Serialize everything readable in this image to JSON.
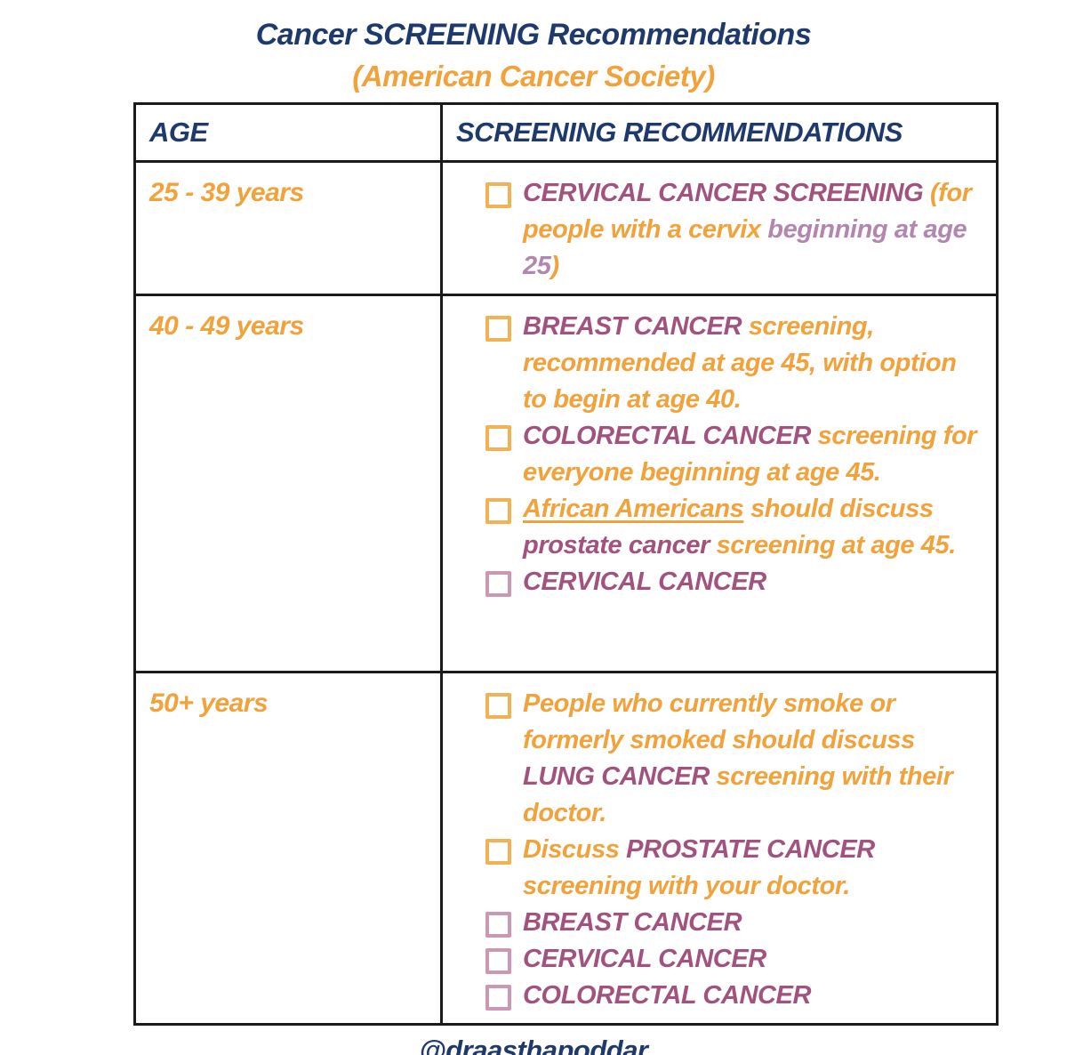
{
  "title": "Cancer SCREENING Recommendations",
  "subtitle": "(American Cancer Society)",
  "footer": "@draasthapoddar",
  "colors": {
    "navy": "#1e3a6d",
    "orange": "#f2a23b",
    "magenta": "#a1527e",
    "mauve": "#b286ae",
    "checkbox_orange": "#f2b254",
    "checkbox_pink": "#cc97b3"
  },
  "table": {
    "headers": [
      "AGE",
      "SCREENING RECOMMENDATIONS"
    ],
    "rows": [
      {
        "age": "25 - 39 years",
        "items": [
          {
            "checkbox": "orange",
            "segments": [
              {
                "text": "CERVICAL CANCER SCREENING ",
                "color": "magenta"
              },
              {
                "text": "(for people with a cervix ",
                "color": "orange"
              },
              {
                "text": "beginning at age 25",
                "color": "mauve"
              },
              {
                "text": ")",
                "color": "orange"
              }
            ]
          }
        ]
      },
      {
        "age": "40 - 49 years",
        "items": [
          {
            "checkbox": "orange",
            "segments": [
              {
                "text": "BREAST CANCER ",
                "color": "magenta"
              },
              {
                "text": "screening, recommended at age 45, with option to begin at age 40.",
                "color": "orange"
              }
            ]
          },
          {
            "checkbox": "orange",
            "segments": [
              {
                "text": "COLORECTAL CANCER ",
                "color": "magenta"
              },
              {
                "text": "screening for everyone beginning at age 45.",
                "color": "orange"
              }
            ]
          },
          {
            "checkbox": "orange",
            "segments": [
              {
                "text": "African Americans",
                "color": "orange",
                "underline": true
              },
              {
                "text": " should discuss ",
                "color": "orange"
              },
              {
                "text": "prostate cancer",
                "color": "magenta"
              },
              {
                "text": " screening at age 45.",
                "color": "orange"
              }
            ]
          },
          {
            "checkbox": "pink",
            "segments": [
              {
                "text": "CERVICAL CANCER",
                "color": "magenta"
              }
            ]
          }
        ]
      },
      {
        "age": "50+ years",
        "items": [
          {
            "checkbox": "orange",
            "segments": [
              {
                "text": "People who currently smoke or formerly smoked should discuss ",
                "color": "orange"
              },
              {
                "text": "LUNG CANCER ",
                "color": "magenta"
              },
              {
                "text": "screening with their doctor.",
                "color": "orange"
              }
            ]
          },
          {
            "checkbox": "orange",
            "segments": [
              {
                "text": "Discuss ",
                "color": "orange"
              },
              {
                "text": "PROSTATE CANCER ",
                "color": "magenta"
              },
              {
                "text": "screening with your doctor.",
                "color": "orange"
              }
            ]
          },
          {
            "checkbox": "pink",
            "segments": [
              {
                "text": "BREAST CANCER",
                "color": "magenta"
              }
            ]
          },
          {
            "checkbox": "pink",
            "segments": [
              {
                "text": "CERVICAL CANCER",
                "color": "magenta"
              }
            ]
          },
          {
            "checkbox": "pink",
            "segments": [
              {
                "text": "COLORECTAL CANCER",
                "color": "magenta"
              }
            ]
          }
        ]
      }
    ]
  }
}
